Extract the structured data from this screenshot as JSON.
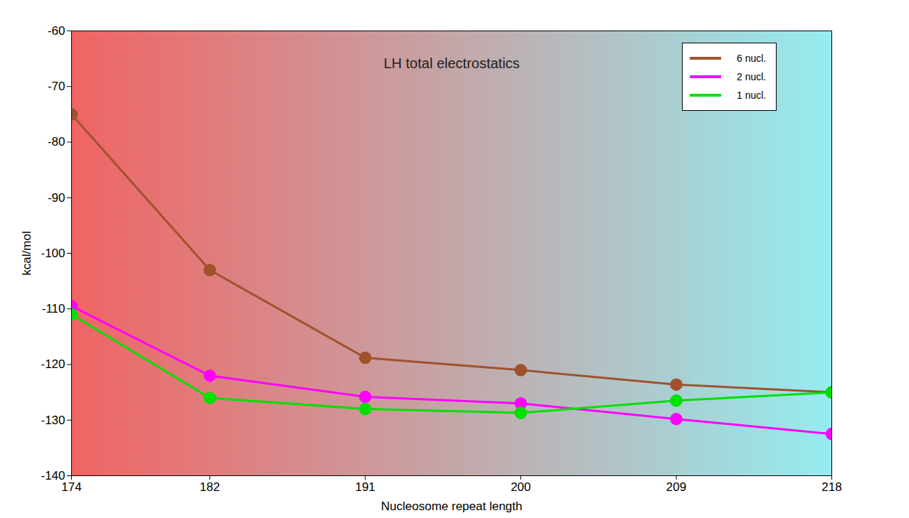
{
  "chart_data": {
    "type": "line",
    "title": "LH total electrostatics",
    "x_label": "Nucleosome repeat length",
    "y_label": "kcal/mol",
    "x": [
      174,
      182,
      191,
      200,
      209,
      218
    ],
    "series": [
      {
        "name": "6 nucl.",
        "color": "#a0522d",
        "marker": "circle",
        "values": [
          -75,
          -103,
          -118.8,
          -121,
          -123.6,
          -125
        ]
      },
      {
        "name": "2 nucl.",
        "color": "#ff00ff",
        "marker": "circle",
        "values": [
          -109.5,
          -122,
          -125.8,
          -127,
          -129.8,
          -132.5
        ]
      },
      {
        "name": "1 nucl.",
        "color": "#00e000",
        "marker": "circle",
        "values": [
          -111,
          -126,
          -128,
          -128.7,
          -126.5,
          -125
        ]
      }
    ],
    "xlim": [
      174,
      218
    ],
    "xticks": [
      174,
      182,
      191,
      200,
      209,
      218
    ],
    "ylim": [
      -140,
      -60
    ],
    "yticks": [
      -140,
      -130,
      -120,
      -110,
      -100,
      -90,
      -80,
      -70,
      -60
    ],
    "grid": false,
    "legend": "top-right"
  }
}
